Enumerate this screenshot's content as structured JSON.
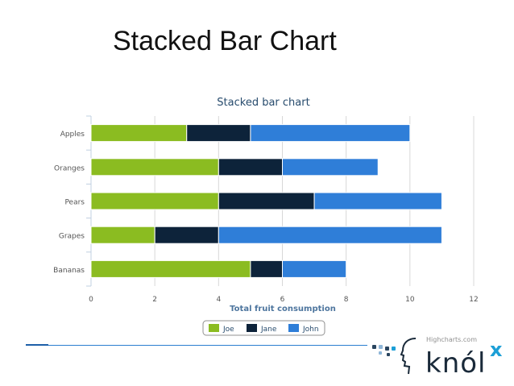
{
  "slide": {
    "title": "Stacked Bar Chart"
  },
  "chart_data": {
    "type": "bar",
    "orientation": "horizontal",
    "stacked": true,
    "title": "Stacked bar chart",
    "xlabel": "Total fruit consumption",
    "ylabel": "",
    "categories": [
      "Apples",
      "Oranges",
      "Pears",
      "Grapes",
      "Bananas"
    ],
    "series": [
      {
        "name": "Joe",
        "color": "#8bbc21",
        "values": [
          3,
          4,
          4,
          2,
          5
        ]
      },
      {
        "name": "Jane",
        "color": "#0d233a",
        "values": [
          2,
          2,
          3,
          2,
          1
        ]
      },
      {
        "name": "John",
        "color": "#2f7ed8",
        "values": [
          5,
          3,
          4,
          7,
          2
        ]
      }
    ],
    "xlim": [
      0,
      12
    ],
    "ticks": [
      0,
      2,
      4,
      6,
      8,
      10,
      12
    ],
    "grid": true,
    "legend": "bottom-center"
  },
  "credit": "Highcharts.com",
  "logo": {
    "text": "knól",
    "mark": "x"
  }
}
